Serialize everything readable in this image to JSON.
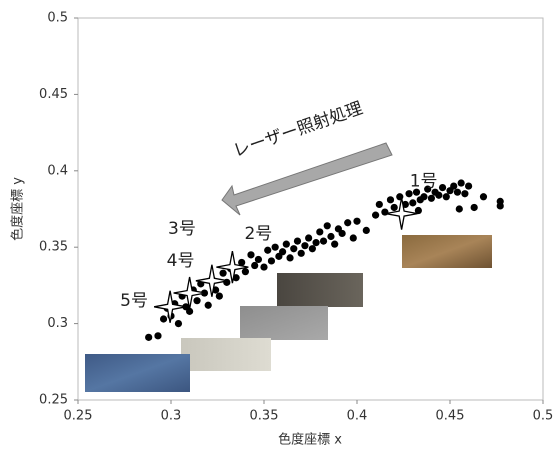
{
  "chart_data": {
    "type": "scatter",
    "xlabel": "色度座標 x",
    "ylabel": "色度座標 y",
    "xlim": [
      0.25,
      0.5
    ],
    "ylim": [
      0.25,
      0.5
    ],
    "xticks": [
      0.25,
      0.3,
      0.35,
      0.4,
      0.45,
      0.5
    ],
    "yticks": [
      0.25,
      0.3,
      0.35,
      0.4,
      0.45,
      0.5
    ],
    "annotation": "レーザー照射処理",
    "series": [
      {
        "color": "#000000",
        "marker": "dot",
        "x": [
          0.288,
          0.293,
          0.296,
          0.298,
          0.3,
          0.302,
          0.304,
          0.306,
          0.308,
          0.31,
          0.312,
          0.314,
          0.316,
          0.318,
          0.32,
          0.322,
          0.324,
          0.326,
          0.328,
          0.33,
          0.332,
          0.335,
          0.338,
          0.34,
          0.343,
          0.345,
          0.347,
          0.35,
          0.352,
          0.354,
          0.356,
          0.358,
          0.36,
          0.362,
          0.364,
          0.366,
          0.368,
          0.37,
          0.372,
          0.374,
          0.376,
          0.378,
          0.38,
          0.382,
          0.384,
          0.386,
          0.388,
          0.39,
          0.392,
          0.395,
          0.398,
          0.4,
          0.405,
          0.41,
          0.412,
          0.415,
          0.418,
          0.42,
          0.423,
          0.426,
          0.428,
          0.43,
          0.432,
          0.434,
          0.436,
          0.438,
          0.44,
          0.442,
          0.444,
          0.446,
          0.448,
          0.45,
          0.452,
          0.454,
          0.456,
          0.458,
          0.46,
          0.463,
          0.468,
          0.477,
          0.477,
          0.455,
          0.433
        ],
        "values": [
          0.291,
          0.292,
          0.303,
          0.31,
          0.305,
          0.313,
          0.3,
          0.318,
          0.311,
          0.308,
          0.322,
          0.315,
          0.326,
          0.32,
          0.312,
          0.329,
          0.322,
          0.318,
          0.333,
          0.327,
          0.336,
          0.33,
          0.34,
          0.334,
          0.345,
          0.338,
          0.342,
          0.337,
          0.348,
          0.341,
          0.35,
          0.344,
          0.347,
          0.352,
          0.343,
          0.349,
          0.354,
          0.346,
          0.351,
          0.356,
          0.349,
          0.353,
          0.36,
          0.354,
          0.364,
          0.357,
          0.352,
          0.362,
          0.359,
          0.366,
          0.356,
          0.367,
          0.361,
          0.371,
          0.378,
          0.373,
          0.381,
          0.376,
          0.383,
          0.378,
          0.385,
          0.379,
          0.386,
          0.381,
          0.383,
          0.388,
          0.382,
          0.386,
          0.384,
          0.389,
          0.383,
          0.387,
          0.39,
          0.386,
          0.392,
          0.385,
          0.39,
          0.376,
          0.383,
          0.38,
          0.377,
          0.375,
          0.374
        ]
      },
      {
        "color": "#000000",
        "marker": "star",
        "x": [
          0.424,
          0.333,
          0.322,
          0.31,
          0.2995
        ],
        "values": [
          0.372,
          0.337,
          0.328,
          0.32,
          0.311
        ],
        "point_labels": [
          "1号",
          "2号",
          "3号",
          "4号",
          "5号"
        ]
      }
    ]
  }
}
